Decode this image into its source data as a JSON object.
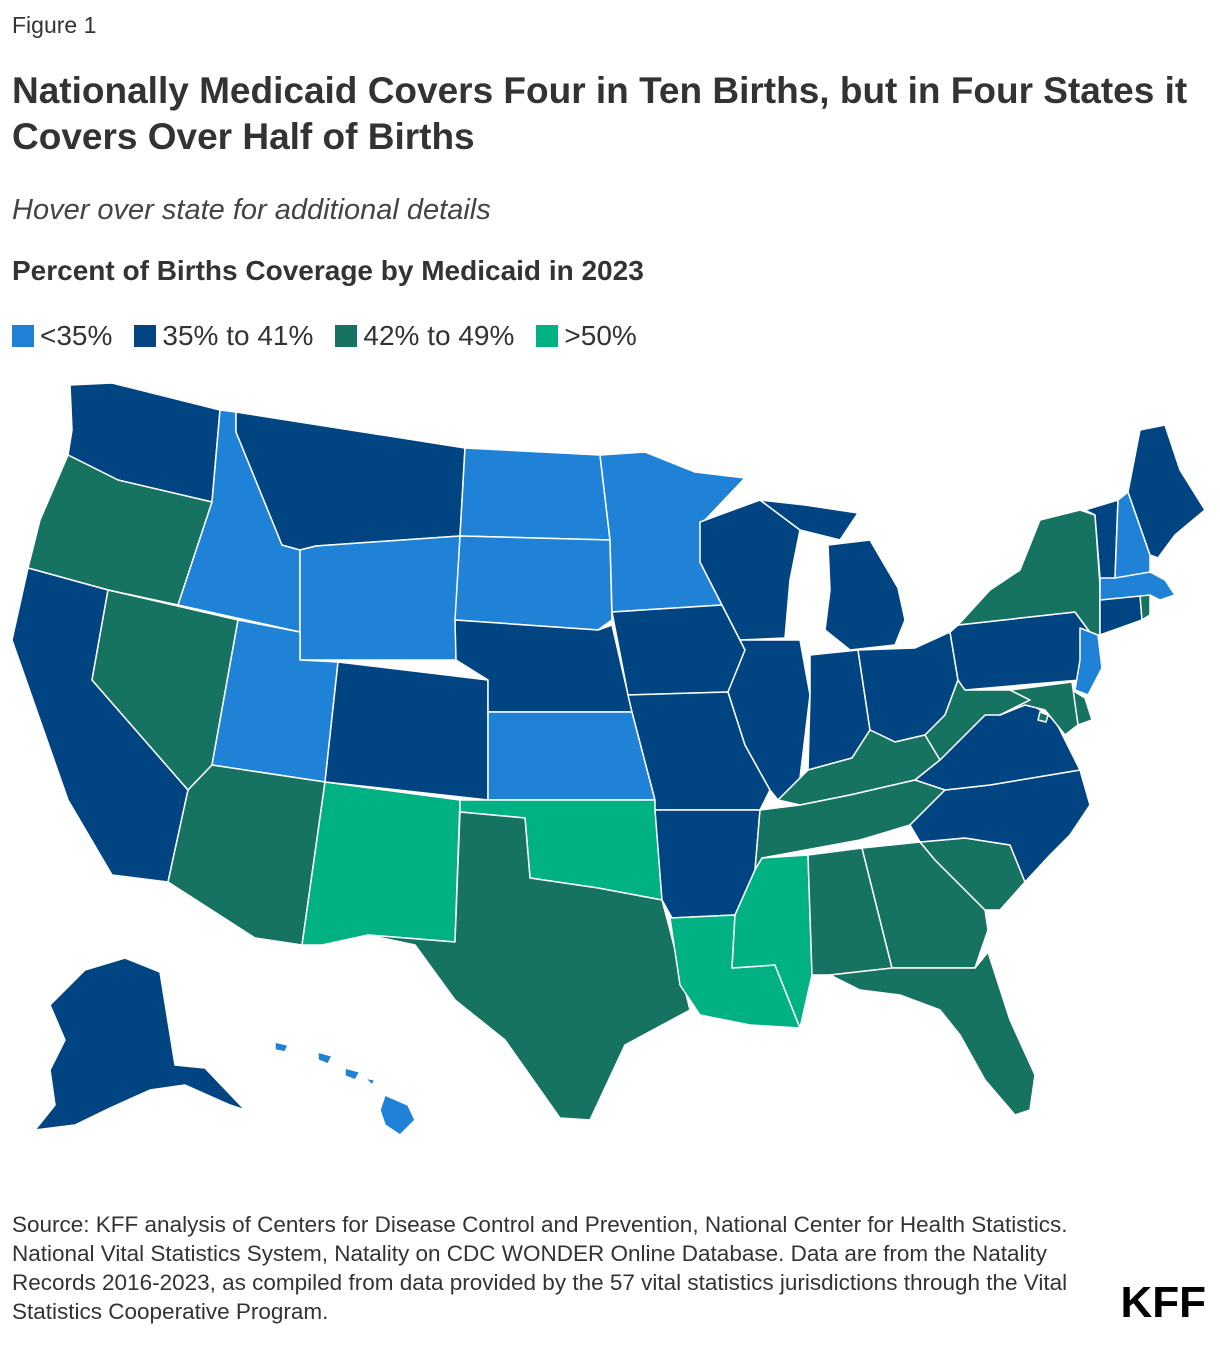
{
  "figure_label": "Figure 1",
  "title": "Nationally Medicaid Covers Four in Ten Births, but in Four States it Covers Over Half of Births",
  "subtitle": "Hover over state for additional details",
  "chart_heading": "Percent of Births Coverage by Medicaid in 2023",
  "legend": [
    {
      "label": "<35%",
      "color": "#1f82d6"
    },
    {
      "label": "35% to 41%",
      "color": "#004582"
    },
    {
      "label": "42% to 49%",
      "color": "#177361"
    },
    {
      "label": ">50%",
      "color": "#00b184"
    }
  ],
  "chart_data": {
    "type": "choropleth",
    "categories": [
      "<35%",
      "35% to 41%",
      "42% to 49%",
      ">50%"
    ],
    "states": {
      "WA": "35% to 41%",
      "OR": "42% to 49%",
      "CA": "35% to 41%",
      "NV": "42% to 49%",
      "ID": "<35%",
      "MT": "35% to 41%",
      "WY": "<35%",
      "UT": "<35%",
      "AZ": "42% to 49%",
      "CO": "35% to 41%",
      "NM": ">50%",
      "ND": "<35%",
      "SD": "<35%",
      "NE": "35% to 41%",
      "KS": "<35%",
      "OK": ">50%",
      "TX": "42% to 49%",
      "MN": "<35%",
      "IA": "35% to 41%",
      "MO": "35% to 41%",
      "AR": "35% to 41%",
      "LA": ">50%",
      "WI": "35% to 41%",
      "IL": "35% to 41%",
      "MI": "35% to 41%",
      "IN": "35% to 41%",
      "OH": "35% to 41%",
      "KY": "42% to 49%",
      "TN": "42% to 49%",
      "MS": ">50%",
      "AL": "42% to 49%",
      "GA": "42% to 49%",
      "FL": "42% to 49%",
      "SC": "42% to 49%",
      "NC": "35% to 41%",
      "VA": "35% to 41%",
      "WV": "42% to 49%",
      "PA": "35% to 41%",
      "NY": "42% to 49%",
      "VT": "35% to 41%",
      "NH": "<35%",
      "ME": "35% to 41%",
      "MA": "<35%",
      "RI": "42% to 49%",
      "CT": "35% to 41%",
      "NJ": "<35%",
      "DE": "42% to 49%",
      "MD": "42% to 49%",
      "DC": "42% to 49%",
      "AK": "35% to 41%",
      "HI": "<35%"
    }
  },
  "source": "Source: KFF analysis of Centers for Disease Control and Prevention, National Center for Health Statistics. National Vital Statistics System, Natality on CDC WONDER Online Database. Data are from the Natality Records 2016-2023, as compiled from data provided by the 57 vital statistics jurisdictions through the Vital Statistics Cooperative Program.",
  "logo": "KFF"
}
